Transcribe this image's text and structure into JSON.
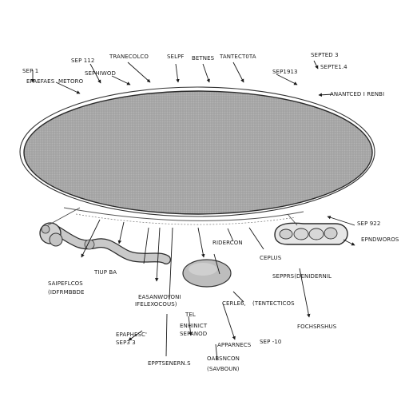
{
  "diagram": {
    "labels": {
      "sep_1": "SEP 1",
      "sep_112": "SEP 112",
      "top_center_1": "TRANECOLCO",
      "top_center_2": "SELPF",
      "top_center_3": "BETNES",
      "top_right_1": "TANTECT0TA",
      "top_right_2": "SEPTED 3",
      "top_right_3": "SEPTE1.4",
      "left_1": "EPAEFAES",
      "left_2": "METORO",
      "left_3": "SEPHIWOD",
      "sep_1913": "SEP1913",
      "right_1": "ANANTCED I RENBI",
      "sep_922": "SEP 922",
      "right_2": "EPNDWOROS",
      "mid_1": "RIDERCON",
      "mid_2": "CEPLUS",
      "left_mid_1": "TIUP BA",
      "left_mid_2": "SAIPEFLCOS",
      "left_mid_3": "(IDFRMBBDE",
      "right_mid": "SEPPRS(DENIDERNIL",
      "center_1": "EASANWOYONI",
      "center_2": "IFELEXOCOUS)",
      "center_3": "TEL",
      "center_4": "CERLE6,",
      "center_5": "(TENTECTICOS",
      "right_low": "FOCHSRSHUS",
      "bottom_left_1": "EPAPHESC'",
      "bottom_left_2": "SEP3 3",
      "bottom_mid_1": "ENHINICT",
      "bottom_mid_2": "SEPANOD",
      "bottom_mid_3": "APPARNECS",
      "sep_10": "SEP -10",
      "bottom_1": "EPPTSENERN.S",
      "bottom_2": "OABSNCON",
      "bottom_3": "(SAVBOUN)"
    }
  }
}
